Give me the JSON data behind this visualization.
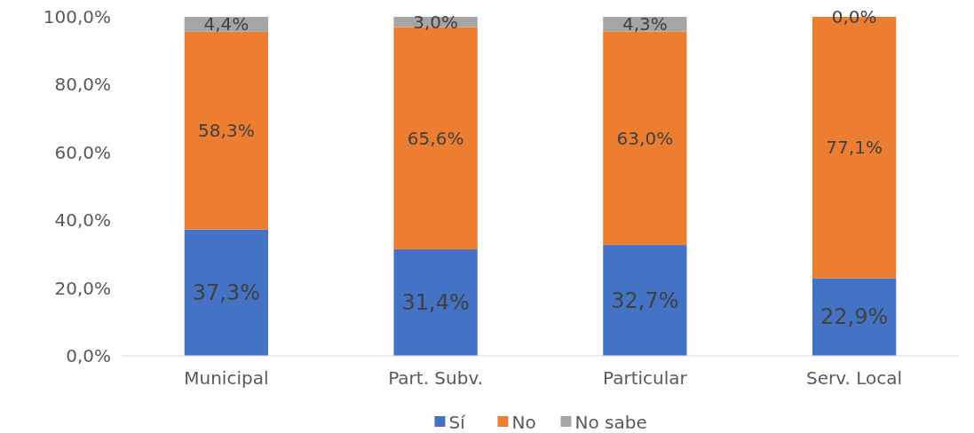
{
  "chart_data": {
    "type": "bar",
    "stacked": true,
    "categories": [
      "Municipal",
      "Part. Subv.",
      "Particular",
      "Serv. Local"
    ],
    "series": [
      {
        "name": "Sí",
        "color": "#4472c4",
        "values": [
          37.3,
          31.4,
          32.7,
          22.9
        ],
        "value_labels": [
          "37,3%",
          "31,4%",
          "32,7%",
          "22,9%"
        ]
      },
      {
        "name": "No",
        "color": "#ed7d31",
        "values": [
          58.3,
          65.6,
          63.0,
          77.1
        ],
        "value_labels": [
          "58,3%",
          "65,6%",
          "63,0%",
          "77,1%"
        ]
      },
      {
        "name": "No sabe",
        "color": "#a5a5a5",
        "values": [
          4.4,
          3.0,
          4.3,
          0.0
        ],
        "value_labels": [
          "4,4%",
          "3,0%",
          "4,3%",
          "0,0%"
        ]
      }
    ],
    "ylim": [
      0,
      100
    ],
    "yticks": [
      {
        "value": 0,
        "label": "0,0%"
      },
      {
        "value": 20,
        "label": "20,0%"
      },
      {
        "value": 40,
        "label": "40,0%"
      },
      {
        "value": 60,
        "label": "60,0%"
      },
      {
        "value": 80,
        "label": "80,0%"
      },
      {
        "value": 100,
        "label": "100,0%"
      }
    ],
    "grid": false,
    "legend": "bottom"
  }
}
